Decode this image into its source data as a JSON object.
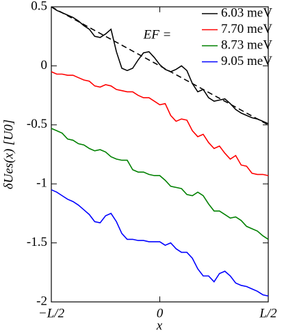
{
  "chart_data": {
    "type": "line",
    "x_label": "x",
    "y_label": "δUes(x)   [U0]",
    "legend_title": "EF =",
    "legend_position": "upper right",
    "xlim": [
      -0.5,
      0.5
    ],
    "ylim": [
      -2,
      0.5
    ],
    "xticks": [
      {
        "value": -0.5,
        "label": "−L/2"
      },
      0,
      {
        "value": 0.5,
        "label": "L/2"
      }
    ],
    "yticks": [
      0.5,
      0,
      -0.5,
      -1,
      -1.5,
      -2
    ],
    "x": [
      -0.5,
      -0.475,
      -0.45,
      -0.425,
      -0.4,
      -0.375,
      -0.35,
      -0.325,
      -0.3,
      -0.275,
      -0.25,
      -0.225,
      -0.2,
      -0.175,
      -0.15,
      -0.125,
      -0.1,
      -0.075,
      -0.05,
      -0.025,
      0,
      0.025,
      0.05,
      0.075,
      0.1,
      0.125,
      0.15,
      0.175,
      0.2,
      0.225,
      0.25,
      0.275,
      0.3,
      0.325,
      0.35,
      0.375,
      0.4,
      0.425,
      0.45,
      0.475,
      0.5
    ],
    "series": [
      {
        "name": "6.03 meV",
        "color": "#000000",
        "values": [
          0.5,
          0.47,
          0.45,
          0.43,
          0.41,
          0.38,
          0.34,
          0.31,
          0.25,
          0.24,
          0.27,
          0.31,
          0.12,
          -0.02,
          -0.04,
          -0.02,
          0.05,
          0.11,
          0.12,
          0.07,
          0.01,
          -0.03,
          -0.05,
          -0.03,
          0.0,
          -0.04,
          -0.15,
          -0.22,
          -0.2,
          -0.27,
          -0.3,
          -0.29,
          -0.28,
          -0.32,
          -0.37,
          -0.4,
          -0.42,
          -0.44,
          -0.45,
          -0.47,
          -0.49
        ]
      },
      {
        "name": "7.70 meV",
        "color": "#ff0000",
        "values": [
          -0.05,
          -0.07,
          -0.07,
          -0.08,
          -0.08,
          -0.1,
          -0.12,
          -0.13,
          -0.17,
          -0.18,
          -0.16,
          -0.17,
          -0.2,
          -0.21,
          -0.22,
          -0.22,
          -0.25,
          -0.27,
          -0.27,
          -0.3,
          -0.33,
          -0.32,
          -0.42,
          -0.47,
          -0.45,
          -0.46,
          -0.55,
          -0.6,
          -0.58,
          -0.65,
          -0.7,
          -0.68,
          -0.74,
          -0.79,
          -0.76,
          -0.84,
          -0.85,
          -0.91,
          -0.92,
          -0.92,
          -0.93
        ]
      },
      {
        "name": "8.73 meV",
        "color": "#008000",
        "values": [
          -0.53,
          -0.55,
          -0.57,
          -0.62,
          -0.63,
          -0.66,
          -0.67,
          -0.7,
          -0.72,
          -0.71,
          -0.73,
          -0.77,
          -0.79,
          -0.8,
          -0.8,
          -0.88,
          -0.9,
          -0.9,
          -0.92,
          -0.93,
          -0.93,
          -0.97,
          -1.02,
          -1.03,
          -1.04,
          -1.09,
          -1.1,
          -1.07,
          -1.1,
          -1.17,
          -1.23,
          -1.23,
          -1.26,
          -1.29,
          -1.28,
          -1.31,
          -1.36,
          -1.38,
          -1.4,
          -1.44,
          -1.47
        ]
      },
      {
        "name": "9.05 meV",
        "color": "#0000ff",
        "values": [
          -1.05,
          -1.07,
          -1.1,
          -1.13,
          -1.15,
          -1.18,
          -1.22,
          -1.26,
          -1.32,
          -1.33,
          -1.27,
          -1.25,
          -1.32,
          -1.42,
          -1.47,
          -1.47,
          -1.48,
          -1.48,
          -1.49,
          -1.49,
          -1.49,
          -1.52,
          -1.5,
          -1.55,
          -1.58,
          -1.58,
          -1.63,
          -1.72,
          -1.78,
          -1.78,
          -1.83,
          -1.76,
          -1.74,
          -1.78,
          -1.84,
          -1.86,
          -1.87,
          -1.89,
          -1.91,
          -1.94,
          -1.95
        ]
      }
    ],
    "reference_line": {
      "x": [
        -0.5,
        0.5
      ],
      "values": [
        0.5,
        -0.5
      ],
      "color": "#000000",
      "dashed": true
    }
  }
}
